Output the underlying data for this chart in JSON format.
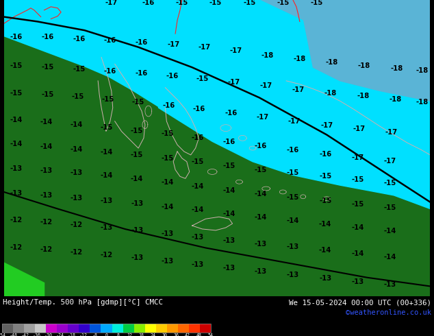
{
  "title_left": "Height/Temp. 500 hPa [gdmp][°C] CMCC",
  "title_right": "We 15-05-2024 00:00 UTC (00+336)",
  "credit": "©weatheronline.co.uk",
  "colorbar_values": [
    -54,
    -48,
    -42,
    -36,
    -30,
    -24,
    -18,
    -12,
    -8,
    0,
    8,
    12,
    18,
    24,
    30,
    36,
    42,
    48,
    54
  ],
  "colorbar_colors": [
    "#606060",
    "#808080",
    "#a0a0a0",
    "#c8c8c8",
    "#cc00cc",
    "#9900cc",
    "#6600cc",
    "#3300cc",
    "#0055dd",
    "#00aaff",
    "#00eedd",
    "#00cc44",
    "#88ee00",
    "#ffff00",
    "#ffcc00",
    "#ff9900",
    "#ff6600",
    "#ff3300",
    "#cc0000"
  ],
  "sea_cyan": "#00e0ff",
  "sea_light_blue": "#5ab4d6",
  "land_dark_green": "#1a6e1a",
  "land_bright_green": "#22cc22",
  "coastline_color": "#d0b0b0",
  "contour_color": "#000000",
  "label_color": "#000000",
  "red_line_color": "#ff2222",
  "bg_color": "#000000"
}
